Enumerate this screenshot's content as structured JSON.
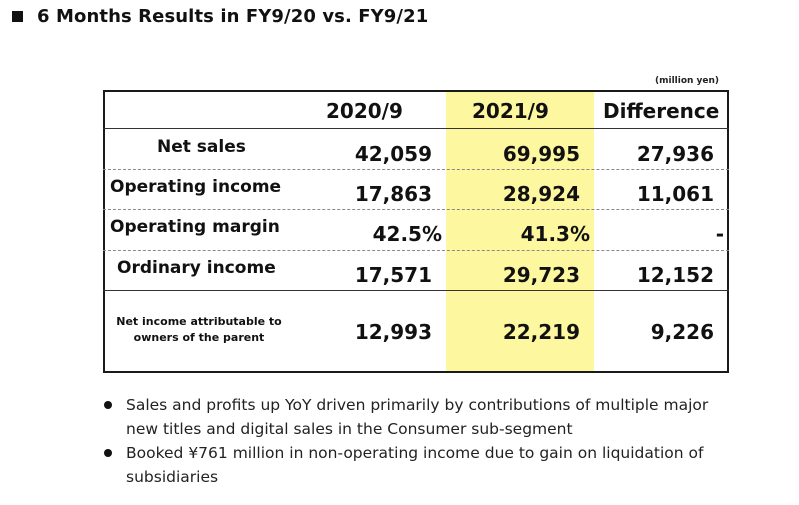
{
  "title": "6 Months Results in FY9/20 vs. FY9/21",
  "unit_note": "(million yen)",
  "colors": {
    "highlight": "#fdf7a0"
  },
  "table": {
    "headers": [
      "2020/9",
      "2021/9",
      "Difference"
    ],
    "rows": [
      {
        "label": "Net sales",
        "v2020": "42,059",
        "v2021": "69,995",
        "diff": "27,936"
      },
      {
        "label": "Operating income",
        "v2020": "17,863",
        "v2021": "28,924",
        "diff": "11,061"
      },
      {
        "label": "Operating margin",
        "v2020": "42.5%",
        "v2021": "41.3%",
        "diff": "-"
      },
      {
        "label": "Ordinary income",
        "v2020": "17,571",
        "v2021": "29,723",
        "diff": "12,152"
      },
      {
        "label_line1": "Net income attributable to",
        "label_line2": "owners of the parent",
        "v2020": "12,993",
        "v2021": "22,219",
        "diff": "9,226"
      }
    ]
  },
  "bullets": [
    {
      "line1": "Sales and profits up YoY driven primarily by contributions of multiple major",
      "line2": "new titles and digital sales in the Consumer sub-segment"
    },
    {
      "line1": "Booked ¥761 million in non-operating income due to gain on liquidation of",
      "line2": "subsidiaries"
    }
  ]
}
